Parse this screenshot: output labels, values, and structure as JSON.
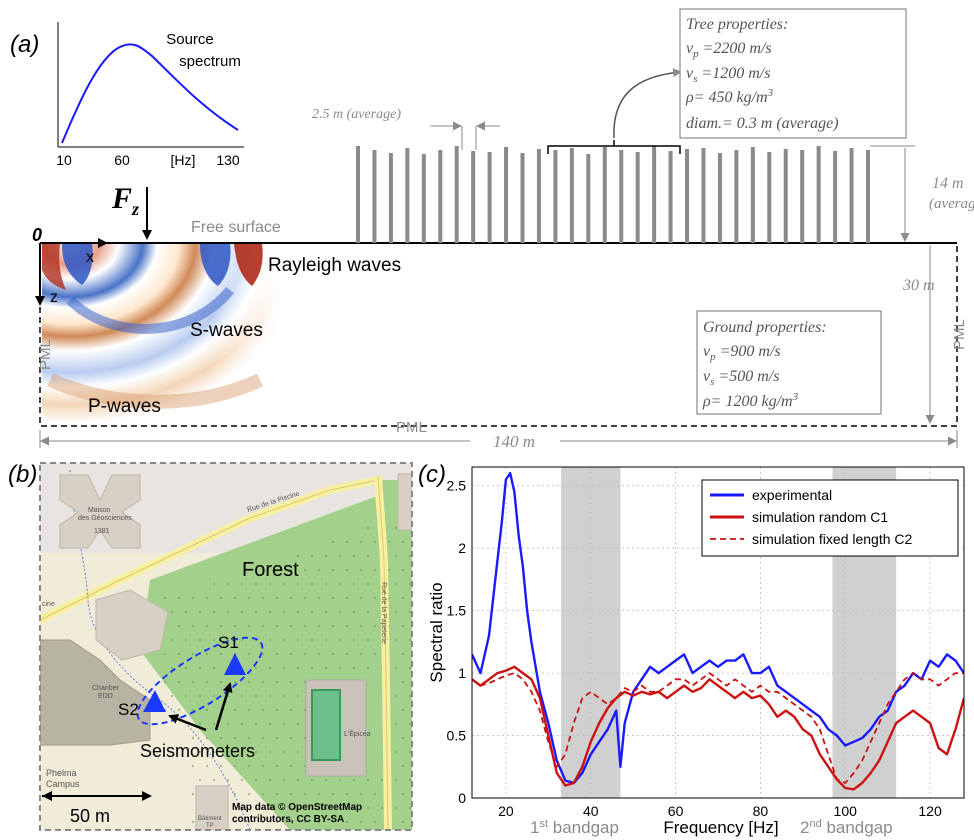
{
  "panel_a": {
    "label": "(a)",
    "spectrum": {
      "title_line1": "Source",
      "title_line2": "spectrum",
      "tick_10": "10",
      "tick_60": "60",
      "tick_hz": "[Hz]",
      "tick_130": "130"
    },
    "force_label": "F",
    "force_sub": "z",
    "free_surface": "Free surface",
    "origin": "0",
    "axis_x": "x",
    "axis_z": "z",
    "rayleigh": "Rayleigh waves",
    "s_waves": "S-waves",
    "p_waves": "P-waves",
    "pml_left": "PML",
    "pml_bottom": "PML",
    "pml_right": "PML",
    "spacing": "2.5 m (average)",
    "tree_height_1": "14 m",
    "tree_height_2": "(average)",
    "depth": "30 m",
    "length": "140 m",
    "tree_props": {
      "title": "Tree properties:",
      "vp_sym": "v",
      "vp_sub": "p",
      "vp_val": " =2200 m/s",
      "vs_sym": "v",
      "vs_sub": "s",
      "vs_val": " =1200 m/s",
      "rho": "ρ= 450 kg/m",
      "rho_sup": "3",
      "diam": "diam.= 0.3 m (average)"
    },
    "ground_props": {
      "title": "Ground properties:",
      "vp_sym": "v",
      "vp_sub": "p",
      "vp_val": " =900 m/s",
      "vs_sym": "v",
      "vs_sub": "s",
      "vs_val": " =500 m/s",
      "rho": "ρ= 1200 kg/m",
      "rho_sup": "3"
    }
  },
  "panel_b": {
    "label": "(b)",
    "forest": "Forest",
    "s1": "S1",
    "s2": "S2",
    "seismometers": "Seismometers",
    "scale": "50 m",
    "credit_line1": "Map data © OpenStreetMap",
    "credit_line2": "contributors, CC BY-SA",
    "map_labels": {
      "rue_piscine": "Rue de la Piscine",
      "rue_papeterie": "Rue de la Papeterie",
      "maison1": "Maison",
      "maison2": "des Géosciences",
      "maison3": "1381",
      "chanber1": "Chanber",
      "chanber2": "EDD",
      "phelma1": "Phelma",
      "phelma2": "Campus",
      "epicea": "L'Épicéa",
      "batiment1": "Bâtiment",
      "batiment2": "TP",
      "cutoff": "cine"
    }
  },
  "panel_c": {
    "label": "(c)",
    "bandgap1_num": "1",
    "bandgap1_sup": "st",
    "bandgap1_word": " bandgap",
    "bandgap2_num": "2",
    "bandgap2_sup": "nd",
    "bandgap2_word": " bandgap"
  },
  "colors": {
    "experimental": "#1a1aff",
    "simulation": "#cc1111",
    "bandgap": "#c8c8c8",
    "map_forest": "#a3d08a",
    "map_ground": "#f0ecd8"
  },
  "chart_data": {
    "type": "line",
    "xlabel": "Frequency [Hz]",
    "ylabel": "Spectral ratio",
    "xlim": [
      12,
      128
    ],
    "ylim": [
      0,
      2.65
    ],
    "xticks": [
      20,
      40,
      60,
      80,
      100,
      120
    ],
    "yticks": [
      0,
      0.5,
      1,
      1.5,
      2,
      2.5
    ],
    "grid": true,
    "legend_position": "top-right",
    "bandgaps": [
      [
        33,
        47
      ],
      [
        97,
        112
      ]
    ],
    "series": [
      {
        "name": "experimental",
        "style": "solid",
        "color": "#1a1aff",
        "x": [
          12,
          14,
          16,
          18,
          19,
          20,
          21,
          22,
          23,
          24,
          25,
          26,
          28,
          30,
          32,
          34,
          36,
          38,
          40,
          42,
          44,
          46,
          47,
          48,
          50,
          52,
          54,
          56,
          58,
          60,
          62,
          64,
          66,
          68,
          70,
          72,
          74,
          76,
          78,
          80,
          82,
          84,
          86,
          88,
          90,
          92,
          94,
          96,
          98,
          100,
          102,
          104,
          106,
          108,
          110,
          112,
          114,
          116,
          118,
          120,
          122,
          124,
          126,
          128
        ],
        "y": [
          1.15,
          1.0,
          1.3,
          1.9,
          2.2,
          2.55,
          2.6,
          2.45,
          2.1,
          1.85,
          1.5,
          1.25,
          0.85,
          0.6,
          0.3,
          0.14,
          0.12,
          0.2,
          0.35,
          0.45,
          0.55,
          0.7,
          0.25,
          0.6,
          0.85,
          0.95,
          1.05,
          1.0,
          1.05,
          1.1,
          1.15,
          1.0,
          1.05,
          1.1,
          1.05,
          1.1,
          1.1,
          1.15,
          1.0,
          1.0,
          1.05,
          0.9,
          0.85,
          0.8,
          0.75,
          0.7,
          0.65,
          0.55,
          0.5,
          0.42,
          0.45,
          0.48,
          0.55,
          0.65,
          0.7,
          0.85,
          0.9,
          1.0,
          0.95,
          1.1,
          1.05,
          1.15,
          1.1,
          1.0
        ]
      },
      {
        "name": "simulation random C1",
        "style": "solid",
        "color": "#cc1111",
        "x": [
          12,
          14,
          16,
          18,
          20,
          22,
          24,
          26,
          28,
          30,
          32,
          34,
          36,
          38,
          40,
          42,
          44,
          46,
          48,
          50,
          52,
          54,
          56,
          58,
          60,
          62,
          64,
          66,
          68,
          70,
          72,
          74,
          76,
          78,
          80,
          82,
          84,
          86,
          88,
          90,
          92,
          94,
          96,
          98,
          100,
          102,
          104,
          106,
          108,
          110,
          112,
          114,
          116,
          118,
          120,
          122,
          124,
          126,
          128
        ],
        "y": [
          0.95,
          0.9,
          0.95,
          1.0,
          1.02,
          1.05,
          1.0,
          0.95,
          0.8,
          0.5,
          0.2,
          0.1,
          0.12,
          0.25,
          0.45,
          0.6,
          0.72,
          0.8,
          0.85,
          0.82,
          0.85,
          0.83,
          0.85,
          0.8,
          0.85,
          0.9,
          0.85,
          0.88,
          0.95,
          0.9,
          0.85,
          0.8,
          0.85,
          0.8,
          0.82,
          0.75,
          0.65,
          0.7,
          0.65,
          0.55,
          0.5,
          0.35,
          0.25,
          0.15,
          0.08,
          0.07,
          0.12,
          0.2,
          0.3,
          0.45,
          0.6,
          0.65,
          0.7,
          0.65,
          0.6,
          0.4,
          0.35,
          0.55,
          0.8
        ]
      },
      {
        "name": "simulation fixed length C2",
        "style": "dashed",
        "color": "#cc1111",
        "x": [
          12,
          14,
          16,
          18,
          20,
          22,
          24,
          26,
          28,
          30,
          32,
          34,
          36,
          38,
          40,
          42,
          44,
          46,
          48,
          50,
          52,
          54,
          56,
          58,
          60,
          62,
          64,
          66,
          68,
          70,
          72,
          74,
          76,
          78,
          80,
          82,
          84,
          86,
          88,
          90,
          92,
          94,
          96,
          98,
          100,
          102,
          104,
          106,
          108,
          110,
          112,
          114,
          116,
          118,
          120,
          122,
          124,
          126,
          128
        ],
        "y": [
          0.95,
          0.9,
          0.92,
          0.95,
          0.98,
          1.0,
          0.95,
          0.85,
          0.7,
          0.45,
          0.25,
          0.35,
          0.6,
          0.8,
          0.85,
          0.8,
          0.75,
          0.8,
          0.88,
          0.85,
          0.9,
          0.85,
          0.85,
          0.9,
          0.95,
          0.95,
          0.9,
          0.95,
          1.0,
          0.95,
          0.9,
          0.95,
          0.9,
          0.85,
          0.9,
          0.85,
          0.85,
          0.8,
          0.75,
          0.7,
          0.65,
          0.55,
          0.35,
          0.15,
          0.12,
          0.2,
          0.3,
          0.45,
          0.6,
          0.75,
          0.85,
          0.95,
          1.0,
          0.95,
          0.95,
          0.9,
          0.95,
          1.0,
          1.0
        ]
      }
    ]
  }
}
